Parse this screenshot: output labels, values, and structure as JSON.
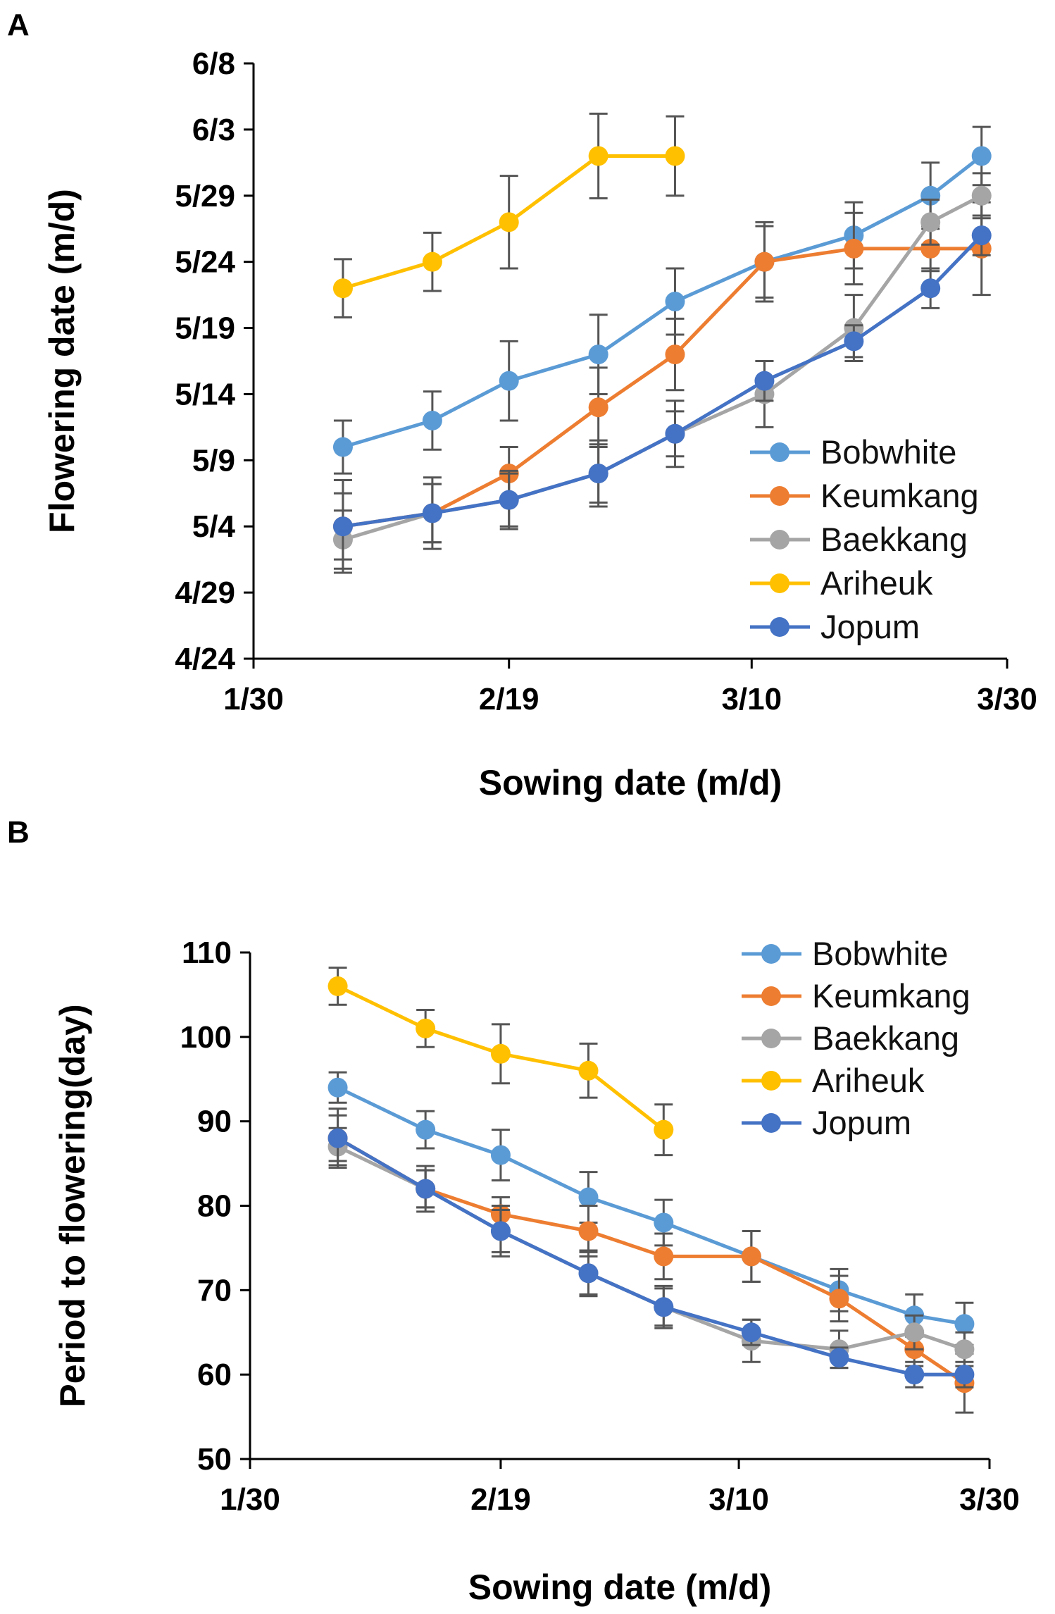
{
  "chart_data": [
    {
      "panel": "A",
      "type": "line",
      "xlabel": "Sowing date (m/d)",
      "ylabel": "Flowering date (m/d)",
      "x_ticks": [
        "1/30",
        "2/19",
        "3/10",
        "3/30"
      ],
      "y_ticks": [
        "4/24",
        "4/29",
        "5/4",
        "5/9",
        "5/14",
        "5/19",
        "5/24",
        "5/29",
        "6/3",
        "6/8"
      ],
      "xlim": [
        "1/30",
        "3/30"
      ],
      "ylim": [
        "4/24",
        "6/8"
      ],
      "legend": "right",
      "series": [
        {
          "name": "Bobwhite",
          "color": "#5B9BD5",
          "x": [
            "2/6",
            "2/13",
            "2/19",
            "2/26",
            "3/4",
            "3/11",
            "3/18",
            "3/24",
            "3/28"
          ],
          "y": [
            "5/10",
            "5/12",
            "5/15",
            "5/17",
            "5/21",
            "5/24",
            "5/26",
            "5/29",
            "6/1"
          ],
          "err_days": [
            2,
            2.2,
            3,
            3,
            2.5,
            3,
            2.5,
            2.5,
            2.2
          ]
        },
        {
          "name": "Keumkang",
          "color": "#ED7D31",
          "x": [
            "2/6",
            "2/13",
            "2/19",
            "2/26",
            "3/4",
            "3/11",
            "3/18",
            "3/24",
            "3/28"
          ],
          "y": [
            "5/4",
            "5/5",
            "5/8",
            "5/13",
            "5/17",
            "5/24",
            "5/25",
            "5/25",
            "5/25"
          ],
          "err_days": [
            2.5,
            2.2,
            2,
            3,
            2.7,
            2.7,
            2.7,
            1.7,
            3.5
          ]
        },
        {
          "name": "Baekkang",
          "color": "#A5A5A5",
          "x": [
            "2/6",
            "2/13",
            "2/19",
            "2/26",
            "3/4",
            "3/11",
            "3/18",
            "3/24",
            "3/28"
          ],
          "y": [
            "5/3",
            "5/5",
            "5/6",
            "5/8",
            "5/11",
            "5/14",
            "5/19",
            "5/27",
            "5/29"
          ],
          "err_days": [
            2.2,
            2.2,
            2.2,
            2.2,
            1.7,
            2.5,
            2.5,
            1.7,
            1.7
          ]
        },
        {
          "name": "Ariheuk",
          "color": "#FFC000",
          "x": [
            "2/6",
            "2/13",
            "2/19",
            "2/26",
            "3/4"
          ],
          "y": [
            "5/22",
            "5/24",
            "5/27",
            "6/1",
            "6/1"
          ],
          "err_days": [
            2.2,
            2.2,
            3.5,
            3.2,
            3
          ]
        },
        {
          "name": "Jopum",
          "color": "#4472C4",
          "x": [
            "2/6",
            "2/13",
            "2/19",
            "2/26",
            "3/4",
            "3/11",
            "3/18",
            "3/24",
            "3/28"
          ],
          "y": [
            "5/4",
            "5/5",
            "5/6",
            "5/8",
            "5/11",
            "5/15",
            "5/18",
            "5/22",
            "5/26"
          ],
          "err_days": [
            3.5,
            2.7,
            2,
            2.5,
            2.5,
            1.5,
            1.2,
            1.5,
            1.5
          ]
        }
      ]
    },
    {
      "panel": "B",
      "type": "line",
      "xlabel": "Sowing date (m/d)",
      "ylabel": "Period to flowering(day)",
      "x_ticks": [
        "1/30",
        "2/19",
        "3/10",
        "3/30"
      ],
      "y_ticks": [
        "50",
        "60",
        "70",
        "80",
        "90",
        "100",
        "110"
      ],
      "xlim": [
        "1/30",
        "3/30"
      ],
      "ylim": [
        50,
        110
      ],
      "legend": "top-right",
      "series": [
        {
          "name": "Bobwhite",
          "color": "#5B9BD5",
          "x": [
            "2/6",
            "2/13",
            "2/19",
            "2/26",
            "3/4",
            "3/11",
            "3/18",
            "3/24",
            "3/28"
          ],
          "y": [
            94,
            89,
            86,
            81,
            78,
            74,
            70,
            67,
            66
          ],
          "err": [
            1.8,
            2.2,
            3,
            3,
            2.7,
            3,
            2.5,
            2.5,
            2.5
          ]
        },
        {
          "name": "Keumkang",
          "color": "#ED7D31",
          "x": [
            "2/6",
            "2/13",
            "2/19",
            "2/26",
            "3/4",
            "3/11",
            "3/18",
            "3/24",
            "3/28"
          ],
          "y": [
            88,
            82,
            79,
            77,
            74,
            74,
            69,
            63,
            59
          ],
          "err": [
            2.7,
            2.2,
            2,
            3,
            2.7,
            3,
            2.7,
            2,
            3.5
          ]
        },
        {
          "name": "Baekkang",
          "color": "#A5A5A5",
          "x": [
            "2/6",
            "2/13",
            "2/19",
            "2/26",
            "3/4",
            "3/11",
            "3/18",
            "3/24",
            "3/28"
          ],
          "y": [
            87,
            82,
            77,
            72,
            68,
            64,
            63,
            65,
            63
          ],
          "err": [
            2.2,
            2.2,
            3,
            2.7,
            2.2,
            2.5,
            2.2,
            2,
            2
          ]
        },
        {
          "name": "Ariheuk",
          "color": "#FFC000",
          "x": [
            "2/6",
            "2/13",
            "2/19",
            "2/26",
            "3/4"
          ],
          "y": [
            106,
            101,
            98,
            96,
            89
          ],
          "err": [
            2.2,
            2.2,
            3.5,
            3.2,
            3
          ]
        },
        {
          "name": "Jopum",
          "color": "#4472C4",
          "x": [
            "2/6",
            "2/13",
            "2/19",
            "2/26",
            "3/4",
            "3/11",
            "3/18",
            "3/24",
            "3/28"
          ],
          "y": [
            88,
            82,
            77,
            72,
            68,
            65,
            62,
            60,
            60
          ],
          "err": [
            3.5,
            2.7,
            2.5,
            2.5,
            2.5,
            1.5,
            1.2,
            1.5,
            1.5
          ]
        }
      ]
    }
  ],
  "panel_labels": {
    "a": "A",
    "b": "B"
  }
}
